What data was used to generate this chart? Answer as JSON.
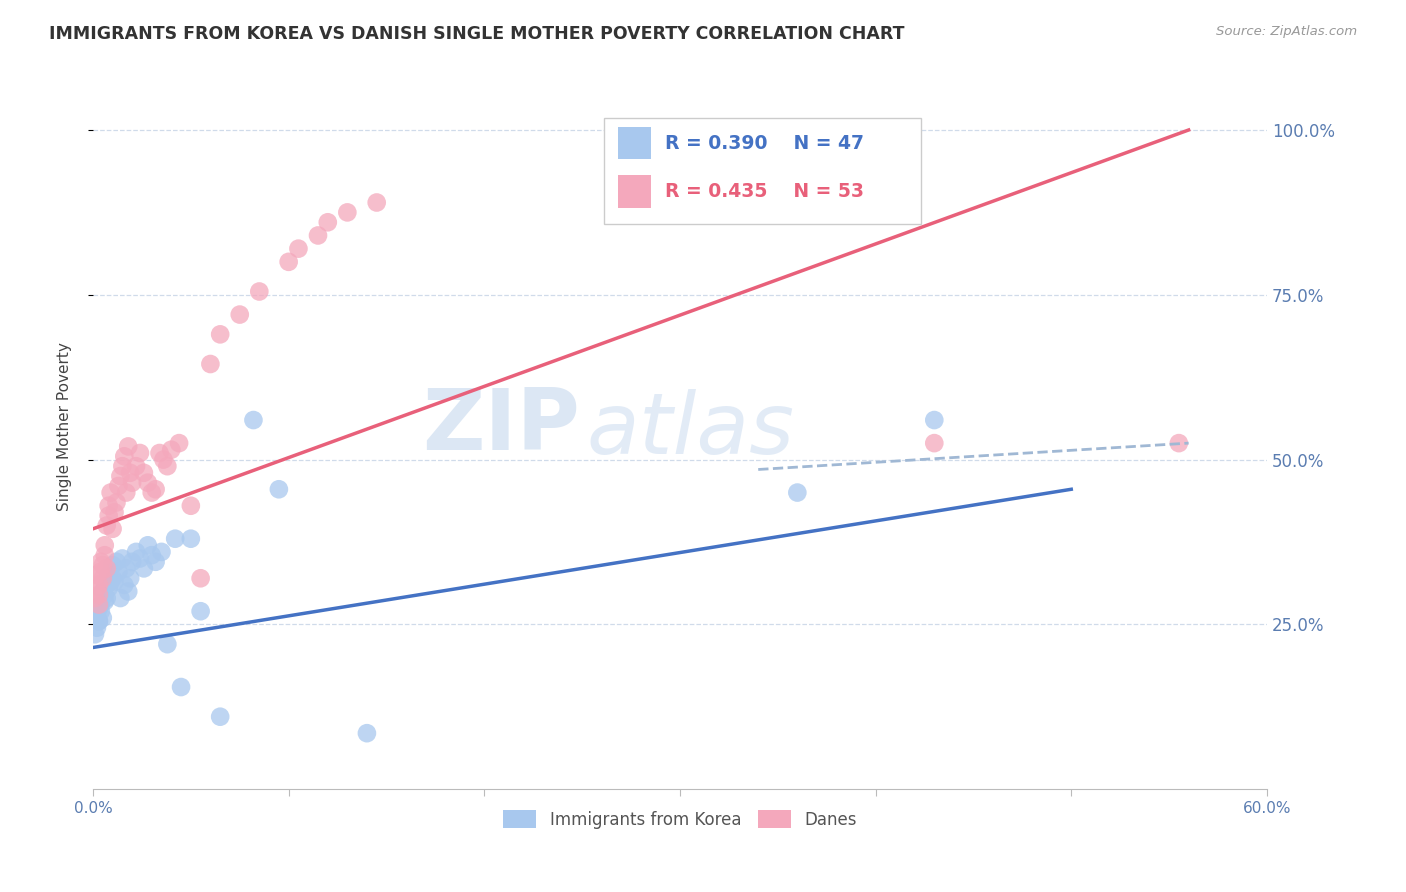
{
  "title": "IMMIGRANTS FROM KOREA VS DANISH SINGLE MOTHER POVERTY CORRELATION CHART",
  "source": "Source: ZipAtlas.com",
  "xlim": [
    0.0,
    0.6
  ],
  "ylim": [
    0.0,
    1.1
  ],
  "ylabel": "Single Mother Poverty",
  "legend_blue_R": "R = 0.390",
  "legend_blue_N": "N = 47",
  "legend_pink_R": "R = 0.435",
  "legend_pink_N": "N = 53",
  "legend_label_blue": "Immigrants from Korea",
  "legend_label_pink": "Danes",
  "blue_color": "#A8C8EE",
  "pink_color": "#F4A8BC",
  "blue_line_color": "#4472C4",
  "pink_line_color": "#E8607A",
  "dashed_line_color": "#A0B8D4",
  "watermark_zip": "ZIP",
  "watermark_atlas": "atlas",
  "korea_line": [
    [
      0.0,
      0.215
    ],
    [
      0.5,
      0.455
    ]
  ],
  "danes_line": [
    [
      0.0,
      0.395
    ],
    [
      0.56,
      1.0
    ]
  ],
  "dashed_line": [
    [
      0.34,
      0.485
    ],
    [
      0.56,
      0.525
    ]
  ],
  "korea_points": [
    [
      0.001,
      0.235
    ],
    [
      0.002,
      0.245
    ],
    [
      0.002,
      0.265
    ],
    [
      0.003,
      0.255
    ],
    [
      0.003,
      0.275
    ],
    [
      0.003,
      0.255
    ],
    [
      0.004,
      0.27
    ],
    [
      0.004,
      0.28
    ],
    [
      0.005,
      0.26
    ],
    [
      0.005,
      0.3
    ],
    [
      0.006,
      0.285
    ],
    [
      0.006,
      0.295
    ],
    [
      0.007,
      0.31
    ],
    [
      0.007,
      0.29
    ],
    [
      0.008,
      0.305
    ],
    [
      0.008,
      0.325
    ],
    [
      0.009,
      0.315
    ],
    [
      0.01,
      0.32
    ],
    [
      0.01,
      0.34
    ],
    [
      0.011,
      0.315
    ],
    [
      0.012,
      0.345
    ],
    [
      0.013,
      0.33
    ],
    [
      0.014,
      0.29
    ],
    [
      0.015,
      0.35
    ],
    [
      0.016,
      0.31
    ],
    [
      0.017,
      0.335
    ],
    [
      0.018,
      0.3
    ],
    [
      0.019,
      0.32
    ],
    [
      0.02,
      0.345
    ],
    [
      0.022,
      0.36
    ],
    [
      0.024,
      0.35
    ],
    [
      0.026,
      0.335
    ],
    [
      0.028,
      0.37
    ],
    [
      0.03,
      0.355
    ],
    [
      0.032,
      0.345
    ],
    [
      0.035,
      0.36
    ],
    [
      0.038,
      0.22
    ],
    [
      0.042,
      0.38
    ],
    [
      0.045,
      0.155
    ],
    [
      0.05,
      0.38
    ],
    [
      0.055,
      0.27
    ],
    [
      0.065,
      0.11
    ],
    [
      0.082,
      0.56
    ],
    [
      0.095,
      0.455
    ],
    [
      0.14,
      0.085
    ],
    [
      0.36,
      0.45
    ],
    [
      0.43,
      0.56
    ]
  ],
  "danes_points": [
    [
      0.001,
      0.29
    ],
    [
      0.002,
      0.305
    ],
    [
      0.002,
      0.325
    ],
    [
      0.003,
      0.31
    ],
    [
      0.003,
      0.295
    ],
    [
      0.003,
      0.28
    ],
    [
      0.004,
      0.33
    ],
    [
      0.004,
      0.345
    ],
    [
      0.005,
      0.32
    ],
    [
      0.005,
      0.34
    ],
    [
      0.006,
      0.355
    ],
    [
      0.006,
      0.37
    ],
    [
      0.007,
      0.335
    ],
    [
      0.007,
      0.4
    ],
    [
      0.008,
      0.415
    ],
    [
      0.008,
      0.43
    ],
    [
      0.009,
      0.45
    ],
    [
      0.01,
      0.395
    ],
    [
      0.011,
      0.42
    ],
    [
      0.012,
      0.435
    ],
    [
      0.013,
      0.46
    ],
    [
      0.014,
      0.475
    ],
    [
      0.015,
      0.49
    ],
    [
      0.016,
      0.505
    ],
    [
      0.017,
      0.45
    ],
    [
      0.018,
      0.52
    ],
    [
      0.019,
      0.48
    ],
    [
      0.02,
      0.465
    ],
    [
      0.022,
      0.49
    ],
    [
      0.024,
      0.51
    ],
    [
      0.026,
      0.48
    ],
    [
      0.028,
      0.465
    ],
    [
      0.03,
      0.45
    ],
    [
      0.032,
      0.455
    ],
    [
      0.034,
      0.51
    ],
    [
      0.036,
      0.5
    ],
    [
      0.038,
      0.49
    ],
    [
      0.04,
      0.515
    ],
    [
      0.044,
      0.525
    ],
    [
      0.05,
      0.43
    ],
    [
      0.055,
      0.32
    ],
    [
      0.06,
      0.645
    ],
    [
      0.065,
      0.69
    ],
    [
      0.075,
      0.72
    ],
    [
      0.085,
      0.755
    ],
    [
      0.1,
      0.8
    ],
    [
      0.105,
      0.82
    ],
    [
      0.115,
      0.84
    ],
    [
      0.12,
      0.86
    ],
    [
      0.13,
      0.875
    ],
    [
      0.145,
      0.89
    ],
    [
      0.43,
      0.525
    ],
    [
      0.555,
      0.525
    ]
  ]
}
